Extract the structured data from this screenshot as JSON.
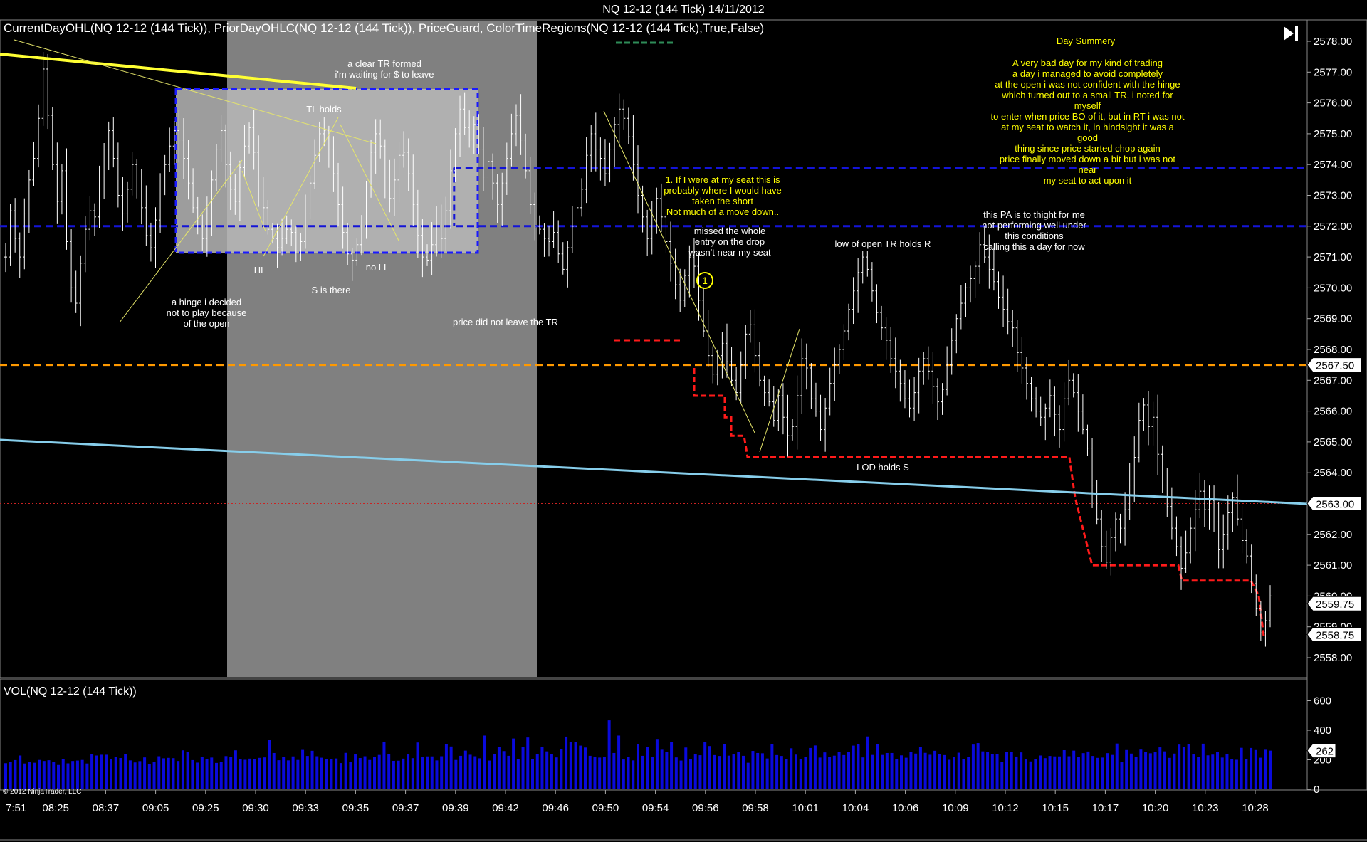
{
  "window": {
    "title": "NQ 12-12 (144 Tick)  14/11/2012"
  },
  "indicators_label": "CurrentDayOHL(NQ 12-12 (144 Tick)),  PriorDayOHLC(NQ 12-12 (144 Tick)),  PriceGuard,  ColorTimeRegions(NQ 12-12 (144 Tick),True,False)",
  "volume_label": "VOL(NQ 12-12 (144 Tick))",
  "copyright": "© 2012 NinjaTrader, LLC",
  "colors": {
    "background": "#000000",
    "price_bars": "#ffffff",
    "volume_bars": "#0a0adc",
    "time_region": "#808080",
    "box_fill": "#b8b8b8",
    "box_border": "#1a1aff",
    "blue_level": "#1414d8",
    "orange_level": "#ff9900",
    "red_level": "#ff1a1a",
    "trendline_light_blue": "#87ceeb",
    "trendline_yellow": "#ffff33",
    "annotation_yellow": "#ffff00",
    "green_marker": "#2e8b57"
  },
  "icons": {
    "play": "skip-forward-icon"
  },
  "chart_data": [
    {
      "type": "candlestick",
      "title": "NQ 12-12 (144 Tick)  14/11/2012",
      "y_axis_side": "right",
      "ylim": [
        2557.5,
        2578.5
      ],
      "y_ticks": [
        "2578.00",
        "2577.00",
        "2576.00",
        "2575.00",
        "2574.00",
        "2573.00",
        "2572.00",
        "2571.00",
        "2570.00",
        "2569.00",
        "2568.00",
        "2567.00",
        "2566.00",
        "2565.00",
        "2564.00",
        "2563.00",
        "2562.00",
        "2561.00",
        "2560.00",
        "2559.00",
        "2558.00"
      ],
      "y_tick_values": [
        2578,
        2577,
        2576,
        2575,
        2574,
        2573,
        2572,
        2571,
        2570,
        2569,
        2568,
        2567,
        2566,
        2565,
        2564,
        2563,
        2562,
        2561,
        2560,
        2559,
        2558
      ],
      "x_ticks": [
        "7:51",
        "08:25",
        "08:37",
        "09:05",
        "09:25",
        "09:30",
        "09:33",
        "09:35",
        "09:37",
        "09:39",
        "09:42",
        "09:46",
        "09:50",
        "09:54",
        "09:56",
        "09:58",
        "10:01",
        "10:04",
        "10:06",
        "10:09",
        "10:12",
        "10:15",
        "10:17",
        "10:20",
        "10:23",
        "10:28"
      ],
      "price_markers": [
        {
          "label": "2567.50",
          "value": 2567.5
        },
        {
          "label": "2563.00",
          "value": 2563.0
        },
        {
          "label": "2559.75",
          "value": 2559.75
        },
        {
          "label": "2558.75",
          "value": 2558.75
        }
      ],
      "horizontal_levels": [
        {
          "name": "prior-day-high",
          "value": 2573.9,
          "x_from": "09:39",
          "style": "dashed",
          "color": "#1414d8"
        },
        {
          "name": "prior-day-close",
          "value": 2572.0,
          "style": "dashed",
          "color": "#1414d8"
        },
        {
          "name": "prior-day-low",
          "value": 2567.5,
          "style": "dashed",
          "color": "#ff9900"
        },
        {
          "name": "dotted-level",
          "value": 2563.0,
          "style": "dotted",
          "color": "#cc2222"
        }
      ],
      "closes": [
        2571.0,
        2572.5,
        2571.6,
        2571.0,
        2572.4,
        2573.5,
        2574.2,
        2575.5,
        2577.1,
        2575.6,
        2574.0,
        2572.8,
        2573.8,
        2571.5,
        2570.0,
        2569.5,
        2570.8,
        2571.9,
        2572.5,
        2572.3,
        2573.6,
        2574.5,
        2575.1,
        2574.2,
        2573.0,
        2572.4,
        2573.2,
        2574.0,
        2573.3,
        2572.6,
        2571.7,
        2571.3,
        2572.2,
        2573.3,
        2574.0,
        2574.6,
        2575.1,
        2574.8,
        2574.2,
        2573.4,
        2572.6,
        2572.1,
        2571.6,
        2572.4,
        2573.5,
        2574.5,
        2575.1,
        2574.0,
        2573.2,
        2572.8,
        2573.9,
        2574.6,
        2575.2,
        2574.4,
        2573.3,
        2572.6,
        2571.9,
        2571.6,
        2571.3,
        2571.6,
        2571.9,
        2571.8,
        2571.2,
        2571.5,
        2572.4,
        2573.4,
        2574.3,
        2575.0,
        2575.1,
        2574.5,
        2573.7,
        2572.7,
        2571.8,
        2571.1,
        2570.9,
        2571.4,
        2572.1,
        2573.3,
        2574.4,
        2575.0,
        2574.6,
        2573.6,
        2572.9,
        2573.5,
        2574.3,
        2574.4,
        2573.7,
        2572.7,
        2571.7,
        2571.0,
        2570.9,
        2571.4,
        2572.1,
        2571.6,
        2572.5,
        2573.8,
        2575.0,
        2575.8,
        2575.2,
        2574.8,
        2575.3,
        2574.5,
        2573.6,
        2574.1,
        2573.4,
        2572.7,
        2573.4,
        2574.2,
        2575.0,
        2575.6,
        2574.8,
        2573.8,
        2572.7,
        2572.0,
        2571.9,
        2571.6,
        2571.5,
        2571.8,
        2571.1,
        2570.6,
        2571.3,
        2572.0,
        2572.6,
        2573.2,
        2574.3,
        2575.0,
        2574.5,
        2574.2,
        2573.7,
        2574.5,
        2575.3,
        2575.8,
        2575.5,
        2574.9,
        2574.0,
        2573.0,
        2572.3,
        2571.6,
        2572.1,
        2572.9,
        2572.3,
        2571.5,
        2570.8,
        2570.1,
        2569.6,
        2570.4,
        2571.0,
        2570.7,
        2569.6,
        2568.6,
        2567.8,
        2567.2,
        2567.8,
        2568.2,
        2567.6,
        2567.0,
        2566.6,
        2567.5,
        2568.5,
        2568.8,
        2567.8,
        2567.0,
        2566.6,
        2566.3,
        2565.7,
        2566.5,
        2565.8,
        2565.2,
        2565.5,
        2566.5,
        2567.7,
        2567.4,
        2566.4,
        2566.0,
        2565.4,
        2566.1,
        2566.9,
        2567.5,
        2568.0,
        2568.6,
        2569.3,
        2569.9,
        2570.5,
        2571.0,
        2570.6,
        2569.9,
        2569.2,
        2568.7,
        2568.3,
        2567.7,
        2567.3,
        2566.9,
        2566.4,
        2566.1,
        2566.6,
        2567.3,
        2567.7,
        2567.3,
        2566.8,
        2566.3,
        2566.7,
        2567.5,
        2568.3,
        2569.0,
        2569.5,
        2570.0,
        2570.3,
        2570.7,
        2571.4,
        2571.0,
        2570.6,
        2570.2,
        2569.7,
        2569.3,
        2568.9,
        2568.7,
        2567.9,
        2567.4,
        2566.9,
        2566.4,
        2566.0,
        2565.8,
        2566.1,
        2566.5,
        2565.9,
        2565.4,
        2566.4,
        2567.0,
        2566.6,
        2566.0,
        2565.4,
        2564.8,
        2563.6,
        2562.5,
        2561.6,
        2561.1,
        2561.9,
        2562.5,
        2562.2,
        2562.8,
        2563.6,
        2564.5,
        2565.7,
        2566.2,
        2565.5,
        2565.8,
        2564.6,
        2563.6,
        2562.9,
        2562.2,
        2561.6,
        2560.9,
        2561.4,
        2562.2,
        2562.8,
        2563.4,
        2562.8,
        2563.1,
        2562.4,
        2561.5,
        2562.0,
        2562.7,
        2563.2,
        2562.5,
        2561.8,
        2561.3,
        2560.4,
        2559.6,
        2558.8,
        2559.2,
        2560.0
      ],
      "annotations": [
        {
          "text": "a clear TR formed\ni'm waiting for $ to leave",
          "color": "white"
        },
        {
          "text": "TL holds",
          "color": "white"
        },
        {
          "text": "HL",
          "color": "white"
        },
        {
          "text": "no LL",
          "color": "white"
        },
        {
          "text": "S is there",
          "color": "white"
        },
        {
          "text": "a hinge i decided\nnot to play because\nof the open",
          "color": "white"
        },
        {
          "text": "price did not leave the TR",
          "color": "white"
        },
        {
          "text": "1. If I were at my seat this is\nprobably where I would have\ntaken the short\nNot much of a move down..",
          "color": "yellow"
        },
        {
          "text": "missed the whole\nentry on the drop\nwasn't near my seat",
          "color": "white"
        },
        {
          "text": "1",
          "color": "yellow"
        },
        {
          "text": "low of open TR holds R",
          "color": "white"
        },
        {
          "text": "this PA is to thight for me\nnot performing well under\nthis conditions\ncalling this a day for now",
          "color": "white"
        },
        {
          "text": "LOD holds S",
          "color": "white"
        },
        {
          "text": "Day Summery",
          "color": "yellow"
        },
        {
          "text": "A very bad day for my kind of trading\na day i managed to avoid completely\nat the open i was not confident with the hinge\nwhich turned out to a small TR, i noted for myself\nto enter when price BO of it, but in RT i was not\nat my seat to watch it, in hindsight it was a good\nthing since price started chop again\nprice finally moved down a bit but i was not near\nmy seat to act upon it",
          "color": "yellow"
        }
      ]
    },
    {
      "type": "bar",
      "title": "VOL(NQ 12-12 (144 Tick))",
      "ylim": [
        0,
        700
      ],
      "y_ticks": [
        "600",
        "400",
        "200",
        "0"
      ],
      "y_tick_values": [
        600,
        400,
        200,
        0
      ],
      "last_value_marker": "262",
      "last_value": 262,
      "values": [
        177,
        187,
        198,
        229,
        175,
        188,
        180,
        199,
        192,
        197,
        186,
        165,
        207,
        176,
        192,
        195,
        199,
        175,
        237,
        229,
        234,
        234,
        205,
        219,
        212,
        239,
        196,
        182,
        191,
        216,
        170,
        187,
        224,
        210,
        213,
        211,
        192,
        264,
        252,
        198,
        181,
        219,
        205,
        215,
        179,
        184,
        225,
        221,
        264,
        205,
        200,
        208,
        204,
        213,
        216,
        335,
        246,
        197,
        219,
        196,
        223,
        199,
        267,
        226,
        261,
        224,
        214,
        206,
        207,
        209,
        178,
        247,
        188,
        236,
        212,
        224,
        199,
        218,
        233,
        323,
        239,
        193,
        194,
        208,
        236,
        211,
        317,
        220,
        223,
        223,
        196,
        224,
        304,
        290,
        199,
        227,
        262,
        234,
        224,
        210,
        364,
        195,
        241,
        288,
        259,
        227,
        344,
        204,
        285,
        351,
        206,
        238,
        285,
        257,
        238,
        216,
        271,
        357,
        319,
        319,
        296,
        283,
        227,
        219,
        215,
        220,
        467,
        246,
        364,
        202,
        217,
        196,
        307,
        227,
        289,
        217,
        341,
        268,
        254,
        318,
        216,
        195,
        283,
        207,
        241,
        231,
        321,
        293,
        232,
        226,
        308,
        228,
        236,
        255,
        227,
        180,
        260,
        246,
        244,
        209,
        307,
        232,
        226,
        207,
        278,
        235,
        207,
        221,
        280,
        297,
        215,
        250,
        221,
        228,
        254,
        232,
        251,
        296,
        306,
        216,
        358,
        233,
        308,
        233,
        246,
        246,
        203,
        230,
        214,
        253,
        242,
        286,
        247,
        234,
        261,
        238,
        232,
        200,
        219,
        248,
        204,
        219,
        303,
        313,
        257,
        251,
        238,
        241,
        187,
        255,
        253,
        222,
        250,
        206,
        189,
        204,
        229,
        211,
        226,
        223,
        223,
        265,
        224,
        262,
        221,
        245,
        256,
        226,
        213,
        215,
        245,
        233,
        310,
        183,
        266,
        242,
        220,
        269,
        252,
        244,
        253,
        284,
        257,
        213,
        242,
        303,
        285,
        304,
        236,
        221,
        309,
        230,
        235,
        255,
        215,
        241,
        207,
        200,
        281,
        205,
        280,
        266,
        214,
        268,
        262
      ]
    }
  ]
}
